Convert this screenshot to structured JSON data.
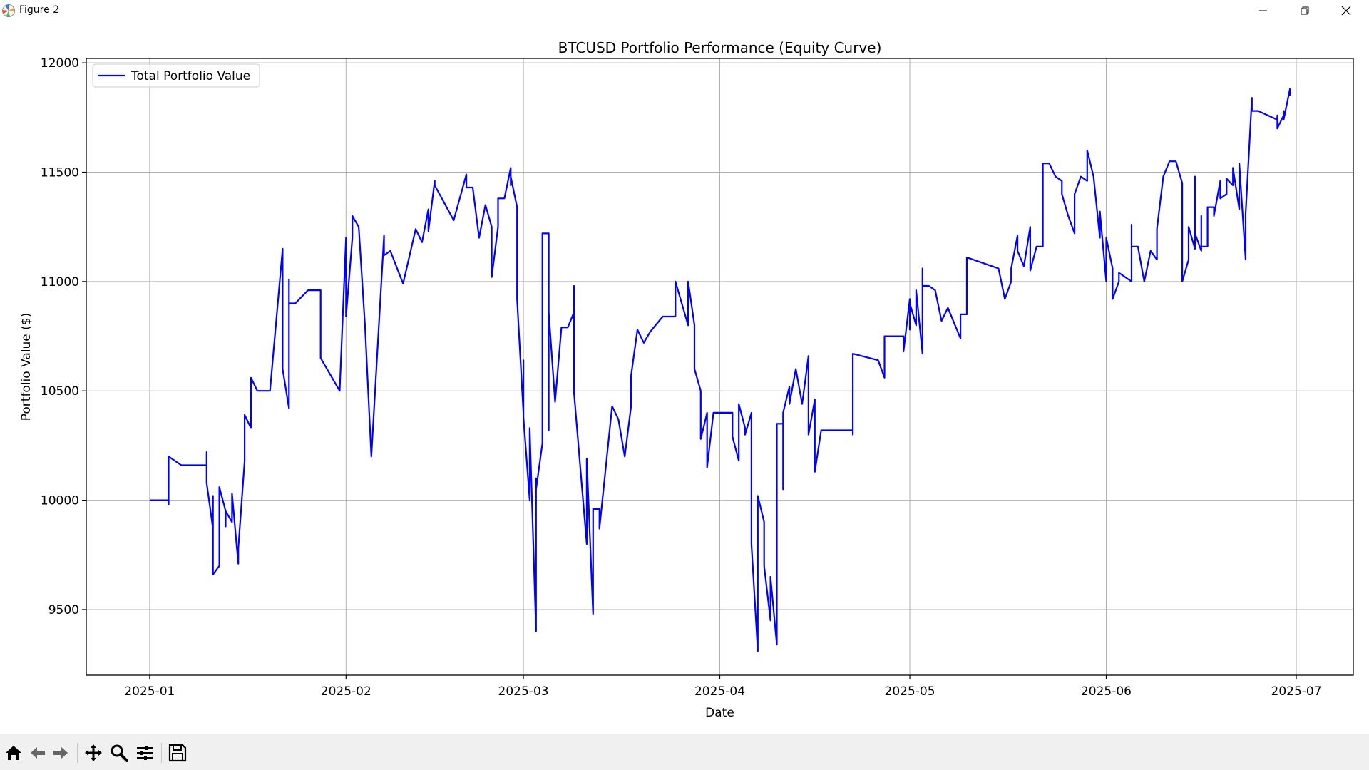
{
  "window": {
    "title": "Figure 2",
    "icon": "matplotlib-icon",
    "controls": [
      "minimize-icon",
      "maximize-icon",
      "close-icon"
    ]
  },
  "toolbar": {
    "buttons": [
      {
        "name": "home-icon",
        "tooltip": "Reset original view"
      },
      {
        "name": "back-icon",
        "tooltip": "Back to previous view"
      },
      {
        "name": "forward-icon",
        "tooltip": "Forward to next view"
      },
      {
        "name": "pan-icon",
        "tooltip": "Pan axes"
      },
      {
        "name": "zoom-icon",
        "tooltip": "Zoom to rectangle"
      },
      {
        "name": "configure-subplots-icon",
        "tooltip": "Configure subplots"
      },
      {
        "name": "save-icon",
        "tooltip": "Save the figure"
      }
    ]
  },
  "colors": {
    "line": "#0000ff",
    "grid": "#b0b0b0",
    "toolbar_bg": "#f0f0f0"
  },
  "chart_data": {
    "type": "line",
    "title": "BTCUSD Portfolio Performance (Equity Curve)",
    "xlabel": "Date",
    "ylabel": "Portfolio Value ($)",
    "xlim": [
      "2024-12-22",
      "2025-07-10"
    ],
    "ylim": [
      9200,
      12020
    ],
    "x_ticks": [
      "2025-01",
      "2025-02",
      "2025-03",
      "2025-04",
      "2025-05",
      "2025-06",
      "2025-07"
    ],
    "x_tick_dates": [
      "2025-01-01",
      "2025-02-01",
      "2025-03-01",
      "2025-04-01",
      "2025-05-01",
      "2025-06-01",
      "2025-07-01"
    ],
    "y_ticks": [
      "9500",
      "10000",
      "10500",
      "11000",
      "11500",
      "12000"
    ],
    "y_tick_values": [
      9500,
      10000,
      10500,
      11000,
      11500,
      12000
    ],
    "grid": true,
    "legend_position": "upper-left",
    "series": [
      {
        "name": "Total Portfolio Value",
        "color": "#0000ff",
        "x": [
          "2025-01-01",
          "2025-01-04",
          "2025-01-04",
          "2025-01-04",
          "2025-01-06",
          "2025-01-10",
          "2025-01-10",
          "2025-01-10",
          "2025-01-11",
          "2025-01-11",
          "2025-01-11",
          "2025-01-11",
          "2025-01-12",
          "2025-01-12",
          "2025-01-12",
          "2025-01-13",
          "2025-01-13",
          "2025-01-13",
          "2025-01-14",
          "2025-01-14",
          "2025-01-14",
          "2025-01-15",
          "2025-01-15",
          "2025-01-16",
          "2025-01-16",
          "2025-01-17",
          "2025-01-17",
          "2025-01-17",
          "2025-01-18",
          "2025-01-18",
          "2025-01-18",
          "2025-01-20",
          "2025-01-22",
          "2025-01-22",
          "2025-01-23",
          "2025-01-23",
          "2025-01-23",
          "2025-01-24",
          "2025-01-26",
          "2025-01-27",
          "2025-01-28",
          "2025-01-28",
          "2025-01-31",
          "2025-02-01",
          "2025-02-01",
          "2025-02-02",
          "2025-02-02",
          "2025-02-03",
          "2025-02-04",
          "2025-02-05",
          "2025-02-07",
          "2025-02-07",
          "2025-02-08",
          "2025-02-10",
          "2025-02-12",
          "2025-02-13",
          "2025-02-14",
          "2025-02-14",
          "2025-02-15",
          "2025-02-15",
          "2025-02-18",
          "2025-02-20",
          "2025-02-20",
          "2025-02-21",
          "2025-02-21",
          "2025-02-22",
          "2025-02-23",
          "2025-02-24",
          "2025-02-24",
          "2025-02-25",
          "2025-02-25",
          "2025-02-26",
          "2025-02-27",
          "2025-02-27",
          "2025-02-27",
          "2025-02-28",
          "2025-02-28",
          "2025-03-01",
          "2025-03-01",
          "2025-03-01",
          "2025-03-02",
          "2025-03-02",
          "2025-03-03",
          "2025-03-03",
          "2025-03-03",
          "2025-03-04",
          "2025-03-04",
          "2025-03-04",
          "2025-03-05",
          "2025-03-05",
          "2025-03-05",
          "2025-03-06",
          "2025-03-07",
          "2025-03-08",
          "2025-03-09",
          "2025-03-09",
          "2025-03-09",
          "2025-03-11",
          "2025-03-11",
          "2025-03-12",
          "2025-03-12",
          "2025-03-12",
          "2025-03-13",
          "2025-03-13",
          "2025-03-15",
          "2025-03-16",
          "2025-03-16",
          "2025-03-17",
          "2025-03-18",
          "2025-03-18",
          "2025-03-19",
          "2025-03-20",
          "2025-03-21",
          "2025-03-23",
          "2025-03-25",
          "2025-03-25",
          "2025-03-27",
          "2025-03-27",
          "2025-03-28",
          "2025-03-28",
          "2025-03-29",
          "2025-03-29",
          "2025-03-30",
          "2025-03-30",
          "2025-03-31",
          "2025-04-03",
          "2025-04-03",
          "2025-04-04",
          "2025-04-04",
          "2025-04-05",
          "2025-04-05",
          "2025-04-06",
          "2025-04-06",
          "2025-04-07",
          "2025-04-07",
          "2025-04-08",
          "2025-04-08",
          "2025-04-09",
          "2025-04-09",
          "2025-04-10",
          "2025-04-10",
          "2025-04-11",
          "2025-04-11",
          "2025-04-11",
          "2025-04-12",
          "2025-04-12",
          "2025-04-13",
          "2025-04-14",
          "2025-04-15",
          "2025-04-15",
          "2025-04-16",
          "2025-04-16",
          "2025-04-17",
          "2025-04-17",
          "2025-04-22",
          "2025-04-22",
          "2025-04-22",
          "2025-04-26",
          "2025-04-26",
          "2025-04-27",
          "2025-04-27",
          "2025-04-27",
          "2025-04-30",
          "2025-04-30",
          "2025-05-01",
          "2025-05-01",
          "2025-05-01",
          "2025-05-02",
          "2025-05-02",
          "2025-05-03",
          "2025-05-03",
          "2025-05-03",
          "2025-05-04",
          "2025-05-05",
          "2025-05-06",
          "2025-05-07",
          "2025-05-09",
          "2025-05-09",
          "2025-05-10",
          "2025-05-10",
          "2025-05-15",
          "2025-05-15",
          "2025-05-16",
          "2025-05-17",
          "2025-05-17",
          "2025-05-18",
          "2025-05-18",
          "2025-05-19",
          "2025-05-20",
          "2025-05-20",
          "2025-05-21",
          "2025-05-21",
          "2025-05-22",
          "2025-05-22",
          "2025-05-22",
          "2025-05-23",
          "2025-05-23",
          "2025-05-24",
          "2025-05-25",
          "2025-05-25",
          "2025-05-26",
          "2025-05-27",
          "2025-05-27",
          "2025-05-28",
          "2025-05-29",
          "2025-05-29",
          "2025-05-30",
          "2025-05-31",
          "2025-05-31",
          "2025-06-01",
          "2025-06-01",
          "2025-06-02",
          "2025-06-02",
          "2025-06-03",
          "2025-06-03",
          "2025-06-05",
          "2025-06-05",
          "2025-06-05",
          "2025-06-06",
          "2025-06-07",
          "2025-06-08",
          "2025-06-09",
          "2025-06-09",
          "2025-06-10",
          "2025-06-11",
          "2025-06-11",
          "2025-06-12",
          "2025-06-13",
          "2025-06-13",
          "2025-06-14",
          "2025-06-14",
          "2025-06-15",
          "2025-06-15",
          "2025-06-15",
          "2025-06-16",
          "2025-06-16",
          "2025-06-16",
          "2025-06-17",
          "2025-06-17",
          "2025-06-18",
          "2025-06-18",
          "2025-06-19",
          "2025-06-19",
          "2025-06-20",
          "2025-06-20",
          "2025-06-21",
          "2025-06-21",
          "2025-06-21",
          "2025-06-22",
          "2025-06-22",
          "2025-06-22",
          "2025-06-23",
          "2025-06-23",
          "2025-06-23",
          "2025-06-24",
          "2025-06-24",
          "2025-06-24",
          "2025-06-25",
          "2025-06-25",
          "2025-06-28",
          "2025-06-28",
          "2025-06-28",
          "2025-06-28",
          "2025-06-28",
          "2025-06-29",
          "2025-06-29",
          "2025-06-29",
          "2025-06-29",
          "2025-06-30",
          "2025-06-30",
          "2025-06-30"
        ],
        "y": [
          10000,
          10000,
          9980,
          10200,
          10160,
          10160,
          10220,
          10080,
          9870,
          10020,
          9900,
          9660,
          9700,
          9900,
          10060,
          9950,
          9880,
          9950,
          9900,
          10030,
          10030,
          9710,
          9780,
          10180,
          10390,
          10330,
          10330,
          10560,
          10500,
          10500,
          10500,
          10500,
          11150,
          10600,
          10420,
          11010,
          10900,
          10900,
          10960,
          10960,
          10960,
          10650,
          10500,
          11200,
          10840,
          11200,
          11300,
          11250,
          10800,
          10200,
          11210,
          11120,
          11140,
          10990,
          11240,
          11180,
          11330,
          11230,
          11460,
          11440,
          11280,
          11490,
          11430,
          11430,
          11430,
          11200,
          11350,
          11250,
          11020,
          11250,
          11380,
          11380,
          11520,
          11440,
          11480,
          11340,
          10920,
          10400,
          10640,
          10380,
          10000,
          10330,
          9400,
          10100,
          10050,
          10260,
          10260,
          11220,
          11220,
          10320,
          10860,
          10450,
          10790,
          10790,
          10860,
          10980,
          10490,
          9800,
          10190,
          9480,
          9960,
          9960,
          9960,
          9870,
          10430,
          10370,
          10370,
          10200,
          10430,
          10570,
          10780,
          10720,
          10770,
          10840,
          10840,
          11000,
          10800,
          11000,
          10800,
          10600,
          10500,
          10280,
          10400,
          10150,
          10400,
          10400,
          10290,
          10180,
          10440,
          10330,
          10300,
          10400,
          9800,
          9310,
          10020,
          9900,
          9700,
          9450,
          9650,
          9340,
          10350,
          10350,
          10050,
          10400,
          10520,
          10440,
          10600,
          10440,
          10660,
          10300,
          10460,
          10130,
          10320,
          10320,
          10320,
          10300,
          10670,
          10640,
          10640,
          10560,
          10750,
          10750,
          10750,
          10680,
          10920,
          10780,
          10900,
          10800,
          10960,
          10670,
          11060,
          10980,
          10980,
          10960,
          10820,
          10880,
          10740,
          10850,
          10850,
          11110,
          11060,
          11060,
          10920,
          11000,
          11060,
          11210,
          11140,
          11070,
          11250,
          11050,
          11160,
          11160,
          11160,
          11430,
          11540,
          11540,
          11540,
          11480,
          11460,
          11400,
          11300,
          11220,
          11400,
          11480,
          11460,
          11600,
          11480,
          11200,
          11320,
          11000,
          11200,
          11060,
          10920,
          11000,
          11040,
          11000,
          11260,
          11160,
          11160,
          11000,
          11140,
          11100,
          11240,
          11480,
          11550,
          11550,
          11550,
          11450,
          11000,
          11100,
          11250,
          11150,
          11480,
          11220,
          11140,
          11300,
          11160,
          11160,
          11340,
          11340,
          11300,
          11460,
          11380,
          11400,
          11470,
          11440,
          11520,
          11520,
          11330,
          11540,
          11540,
          11100,
          11300,
          11310,
          11840,
          11780,
          11780,
          11780,
          11780,
          11740,
          11720,
          11760,
          11730,
          11700,
          11760,
          11740,
          11780,
          11740,
          11880,
          11850,
          11850
        ]
      }
    ]
  }
}
